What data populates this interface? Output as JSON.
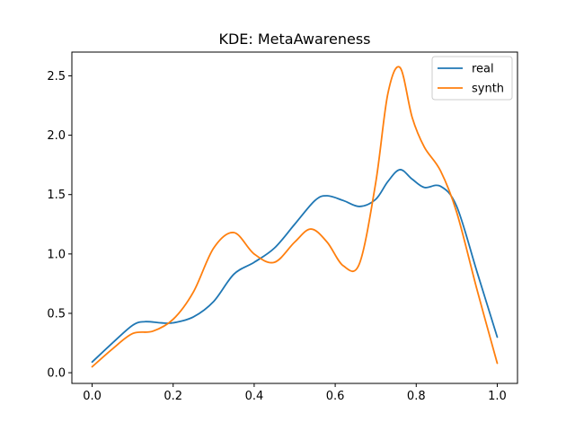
{
  "chart_data": {
    "type": "line",
    "title": "KDE: MetaAwareness",
    "xlabel": "",
    "ylabel": "",
    "xlim": [
      -0.05,
      1.05
    ],
    "ylim": [
      -0.09,
      2.7
    ],
    "grid": false,
    "legend_position": "top-right",
    "x_ticks": [
      0.0,
      0.2,
      0.4,
      0.6,
      0.8,
      1.0
    ],
    "x_tick_labels": [
      "0.0",
      "0.2",
      "0.4",
      "0.6",
      "0.8",
      "1.0"
    ],
    "y_ticks": [
      0.0,
      0.5,
      1.0,
      1.5,
      2.0,
      2.5
    ],
    "y_tick_labels": [
      "0.0",
      "0.5",
      "1.0",
      "1.5",
      "2.0",
      "2.5"
    ],
    "series": [
      {
        "name": "real",
        "color": "#1f77b4",
        "x": [
          0.0,
          0.05,
          0.1,
          0.13,
          0.17,
          0.2,
          0.25,
          0.3,
          0.35,
          0.4,
          0.45,
          0.5,
          0.55,
          0.58,
          0.62,
          0.66,
          0.7,
          0.73,
          0.76,
          0.79,
          0.82,
          0.86,
          0.9,
          0.95,
          1.0
        ],
        "values": [
          0.09,
          0.25,
          0.4,
          0.43,
          0.42,
          0.42,
          0.47,
          0.6,
          0.83,
          0.93,
          1.05,
          1.25,
          1.45,
          1.49,
          1.45,
          1.4,
          1.46,
          1.61,
          1.71,
          1.63,
          1.56,
          1.57,
          1.4,
          0.85,
          0.3
        ]
      },
      {
        "name": "synth",
        "color": "#ff7f0e",
        "x": [
          0.0,
          0.05,
          0.1,
          0.15,
          0.2,
          0.25,
          0.3,
          0.35,
          0.4,
          0.45,
          0.5,
          0.54,
          0.58,
          0.62,
          0.66,
          0.7,
          0.73,
          0.76,
          0.79,
          0.82,
          0.86,
          0.9,
          0.95,
          1.0
        ],
        "values": [
          0.05,
          0.2,
          0.33,
          0.35,
          0.45,
          0.68,
          1.05,
          1.18,
          1.0,
          0.93,
          1.1,
          1.21,
          1.1,
          0.9,
          0.92,
          1.6,
          2.35,
          2.57,
          2.15,
          1.9,
          1.7,
          1.35,
          0.7,
          0.08
        ]
      }
    ]
  }
}
